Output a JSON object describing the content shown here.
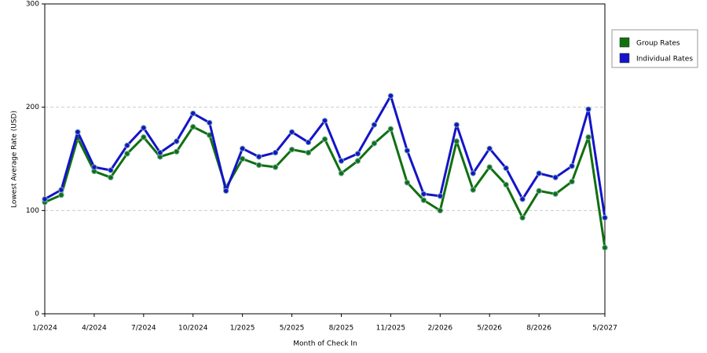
{
  "chart_data": {
    "type": "line",
    "x_label": "Month of Check In",
    "y_label": "Lowest Average Rate (USD)",
    "categories": [
      "1/2024",
      null,
      null,
      "4/2024",
      null,
      null,
      "7/2024",
      null,
      null,
      "10/2024",
      null,
      null,
      "1/2025",
      null,
      null,
      "5/2025",
      null,
      null,
      "8/2025",
      null,
      null,
      "11/2025",
      null,
      null,
      "2/2026",
      null,
      null,
      "5/2026",
      null,
      null,
      "8/2026",
      null,
      null,
      null,
      "5/2027"
    ],
    "series": [
      {
        "name": "Group Rates",
        "color": "#107010",
        "values": [
          108,
          115,
          170,
          138,
          132,
          155,
          171,
          152,
          157,
          181,
          173,
          122,
          150,
          144,
          142,
          159,
          156,
          169,
          136,
          148,
          165,
          179,
          127,
          110,
          100,
          167,
          120,
          142,
          125,
          93,
          119,
          116,
          128,
          171,
          64
        ]
      },
      {
        "name": "Individual Rates",
        "color": "#1414c8",
        "values": [
          111,
          120,
          176,
          142,
          139,
          163,
          180,
          156,
          167,
          194,
          185,
          119,
          160,
          152,
          156,
          176,
          166,
          187,
          148,
          155,
          183,
          211,
          158,
          116,
          114,
          183,
          136,
          160,
          141,
          111,
          136,
          132,
          143,
          198,
          93
        ]
      }
    ],
    "ylim": [
      0,
      300
    ],
    "yticks": [
      0,
      100,
      200,
      300
    ],
    "grid": true,
    "legend": "right"
  }
}
